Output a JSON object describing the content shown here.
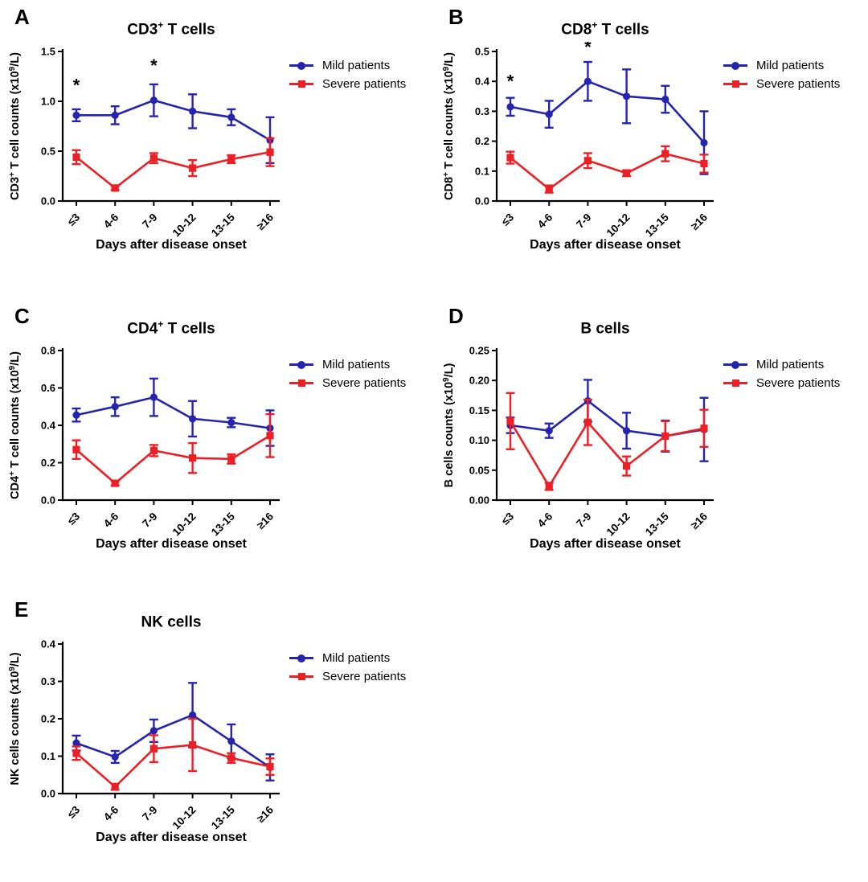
{
  "colors": {
    "mild": "#2424AE",
    "severe": "#EC1F24",
    "axis": "#000000",
    "background": "#ffffff"
  },
  "legend": {
    "mild": "Mild patients",
    "severe": "Severe patients"
  },
  "xlabel": "Days after disease onset",
  "categories": [
    "≤3",
    "4-6",
    "7-9",
    "10-12",
    "13-15",
    "≥16"
  ],
  "chart_data": [
    {
      "type": "line",
      "letter": "A",
      "title": {
        "pre": "CD3",
        "sup": "+",
        "post": " T cells"
      },
      "ylabel_parts": [
        [
          "CD3",
          0
        ],
        [
          "+",
          1
        ],
        [
          " T cell counts (x10",
          0
        ],
        [
          "9",
          1
        ],
        [
          "/L)",
          0
        ]
      ],
      "ylim": [
        0,
        1.5
      ],
      "yticks": [
        "0.0",
        "0.5",
        "1.0",
        "1.5"
      ],
      "legend_position": "right-top",
      "grid": false,
      "series": [
        {
          "name": "Mild patients",
          "marker": "circle",
          "color_key": "mild",
          "values": [
            0.86,
            0.86,
            1.01,
            0.9,
            0.84,
            0.61
          ],
          "errors": [
            0.06,
            0.09,
            0.16,
            0.17,
            0.08,
            0.23
          ]
        },
        {
          "name": "Severe patients",
          "marker": "square",
          "color_key": "severe",
          "values": [
            0.44,
            0.13,
            0.43,
            0.33,
            0.42,
            0.49
          ],
          "errors": [
            0.07,
            0.02,
            0.05,
            0.08,
            0.04,
            0.14
          ]
        }
      ],
      "significance": [
        {
          "index": 0,
          "y": 1.1,
          "symbol": "*"
        },
        {
          "index": 2,
          "y": 1.3,
          "symbol": "*"
        }
      ]
    },
    {
      "type": "line",
      "letter": "B",
      "title": {
        "pre": "CD8",
        "sup": "+",
        "post": " T cells"
      },
      "ylabel_parts": [
        [
          "CD8",
          0
        ],
        [
          "+",
          1
        ],
        [
          " T cell counts (x10",
          0
        ],
        [
          "9",
          1
        ],
        [
          "/L)",
          0
        ]
      ],
      "ylim": [
        0,
        0.5
      ],
      "yticks": [
        "0.0",
        "0.1",
        "0.2",
        "0.3",
        "0.4",
        "0.5"
      ],
      "legend_position": "right-top",
      "grid": false,
      "series": [
        {
          "name": "Mild patients",
          "marker": "circle",
          "color_key": "mild",
          "values": [
            0.315,
            0.29,
            0.4,
            0.35,
            0.34,
            0.195
          ],
          "errors": [
            0.03,
            0.045,
            0.065,
            0.09,
            0.045,
            0.105
          ]
        },
        {
          "name": "Severe patients",
          "marker": "square",
          "color_key": "severe",
          "values": [
            0.145,
            0.04,
            0.135,
            0.093,
            0.158,
            0.125
          ],
          "errors": [
            0.02,
            0.012,
            0.025,
            0.01,
            0.025,
            0.03
          ]
        }
      ],
      "significance": [
        {
          "index": 0,
          "y": 0.38,
          "symbol": "*"
        },
        {
          "index": 2,
          "y": 0.495,
          "symbol": "*"
        }
      ]
    },
    {
      "type": "line",
      "letter": "C",
      "title": {
        "pre": "CD4",
        "sup": "+",
        "post": " T cells"
      },
      "ylabel_parts": [
        [
          "CD4",
          0
        ],
        [
          "+",
          1
        ],
        [
          " T cell counts (x10",
          0
        ],
        [
          "9",
          1
        ],
        [
          "/L)",
          0
        ]
      ],
      "ylim": [
        0,
        0.8
      ],
      "yticks": [
        "0.0",
        "0.2",
        "0.4",
        "0.6",
        "0.8"
      ],
      "legend_position": "right-top",
      "grid": false,
      "series": [
        {
          "name": "Mild patients",
          "marker": "circle",
          "color_key": "mild",
          "values": [
            0.455,
            0.5,
            0.55,
            0.435,
            0.415,
            0.385
          ],
          "errors": [
            0.035,
            0.05,
            0.1,
            0.095,
            0.025,
            0.095
          ]
        },
        {
          "name": "Severe patients",
          "marker": "square",
          "color_key": "severe",
          "values": [
            0.27,
            0.09,
            0.265,
            0.225,
            0.22,
            0.345
          ],
          "errors": [
            0.05,
            0.012,
            0.03,
            0.08,
            0.025,
            0.115
          ]
        }
      ],
      "significance": []
    },
    {
      "type": "line",
      "letter": "D",
      "title": {
        "pre": "B cells",
        "sup": "",
        "post": ""
      },
      "ylabel_parts": [
        [
          "B cells counts (x10",
          0
        ],
        [
          "9",
          1
        ],
        [
          "/L)",
          0
        ]
      ],
      "ylim": [
        0,
        0.25
      ],
      "yticks": [
        "0.00",
        "0.05",
        "0.10",
        "0.15",
        "0.20",
        "0.25"
      ],
      "legend_position": "right-top",
      "grid": false,
      "series": [
        {
          "name": "Mild patients",
          "marker": "circle",
          "color_key": "mild",
          "values": [
            0.125,
            0.116,
            0.166,
            0.116,
            0.107,
            0.118
          ],
          "errors": [
            0.013,
            0.012,
            0.035,
            0.03,
            0.026,
            0.053
          ]
        },
        {
          "name": "Severe patients",
          "marker": "square",
          "color_key": "severe",
          "values": [
            0.132,
            0.023,
            0.13,
            0.057,
            0.107,
            0.12
          ],
          "errors": [
            0.047,
            0.006,
            0.038,
            0.016,
            0.025,
            0.031
          ]
        }
      ],
      "significance": []
    },
    {
      "type": "line",
      "letter": "E",
      "title": {
        "pre": "NK cells",
        "sup": "",
        "post": ""
      },
      "ylabel_parts": [
        [
          "NK cells counts (x10",
          0
        ],
        [
          "9",
          1
        ],
        [
          "/L)",
          0
        ]
      ],
      "ylim": [
        0,
        0.4
      ],
      "yticks": [
        "0.0",
        "0.1",
        "0.2",
        "0.3",
        "0.4"
      ],
      "legend_position": "right-top",
      "grid": false,
      "series": [
        {
          "name": "Mild patients",
          "marker": "circle",
          "color_key": "mild",
          "values": [
            0.135,
            0.098,
            0.168,
            0.21,
            0.14,
            0.07
          ],
          "errors": [
            0.02,
            0.016,
            0.03,
            0.086,
            0.045,
            0.035
          ]
        },
        {
          "name": "Severe patients",
          "marker": "square",
          "color_key": "severe",
          "values": [
            0.108,
            0.018,
            0.12,
            0.13,
            0.095,
            0.072
          ],
          "errors": [
            0.018,
            0.008,
            0.036,
            0.07,
            0.013,
            0.022
          ]
        }
      ],
      "significance": []
    }
  ]
}
